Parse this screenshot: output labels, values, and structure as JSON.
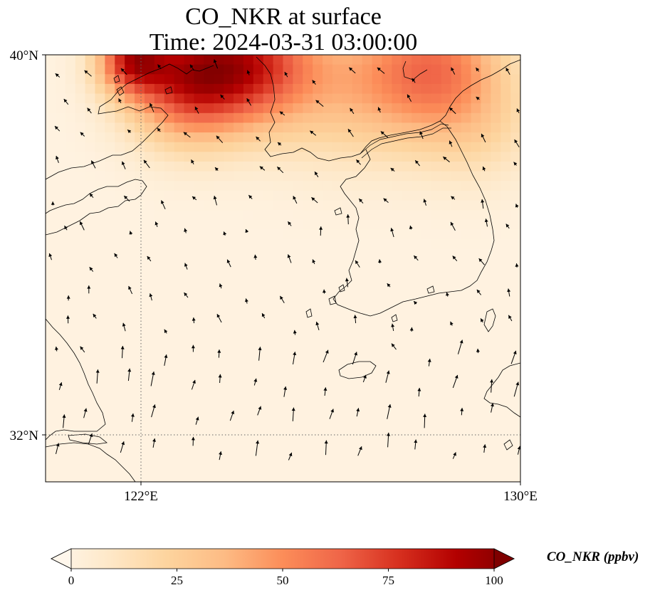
{
  "title": {
    "line1": "CO_NKR at surface",
    "line2": "Time: 2024-03-31 03:00:00"
  },
  "axes": {
    "lat_labels": [
      "40°N",
      "32°N"
    ],
    "lon_labels": [
      "122°E",
      "130°E"
    ]
  },
  "map": {
    "extent_lon": [
      120,
      130
    ],
    "extent_lat": [
      31,
      40
    ],
    "gridlines_lon": [
      122
    ],
    "gridlines_lat": [
      32
    ],
    "coastline_color": "#000000",
    "gridline_style": "dotted",
    "background_color": "#fff5eb"
  },
  "colorbar": {
    "label": "CO_NKR (ppbv)",
    "min": 0,
    "max": 100,
    "ticks": [
      "0",
      "25",
      "50",
      "75",
      "100"
    ],
    "colormap": "OrRd",
    "stops": [
      "#fff7ec",
      "#fee8c8",
      "#fdd49e",
      "#fdbb84",
      "#fc8d59",
      "#ef6548",
      "#d7301f",
      "#b30000",
      "#7f0000"
    ],
    "extend": "both"
  },
  "chart_data": {
    "type": "heatmap",
    "title": "CO_NKR at surface Time: 2024-03-31 03:00:00",
    "xlabel": "",
    "ylabel": "",
    "variable": "CO_NKR",
    "units": "ppbv",
    "hotspots": [
      {
        "lon": 123.0,
        "lat": 39.5,
        "value": 72,
        "sigma_deg": 0.9
      },
      {
        "lon": 121.8,
        "lat": 39.9,
        "value": 60,
        "sigma_deg": 0.5
      },
      {
        "lon": 124.4,
        "lat": 39.85,
        "value": 55,
        "sigma_deg": 0.9
      },
      {
        "lon": 128.3,
        "lat": 39.8,
        "value": 40,
        "sigma_deg": 1.0
      },
      {
        "lon": 127.3,
        "lat": 39.4,
        "value": 20,
        "sigma_deg": 1.1
      },
      {
        "lon": 125.8,
        "lat": 39.3,
        "value": 18,
        "sigma_deg": 1.1
      },
      {
        "lon": 129.2,
        "lat": 38.5,
        "value": 14,
        "sigma_deg": 0.9
      }
    ],
    "background_value": 4,
    "wind_vectors_shown": true
  }
}
